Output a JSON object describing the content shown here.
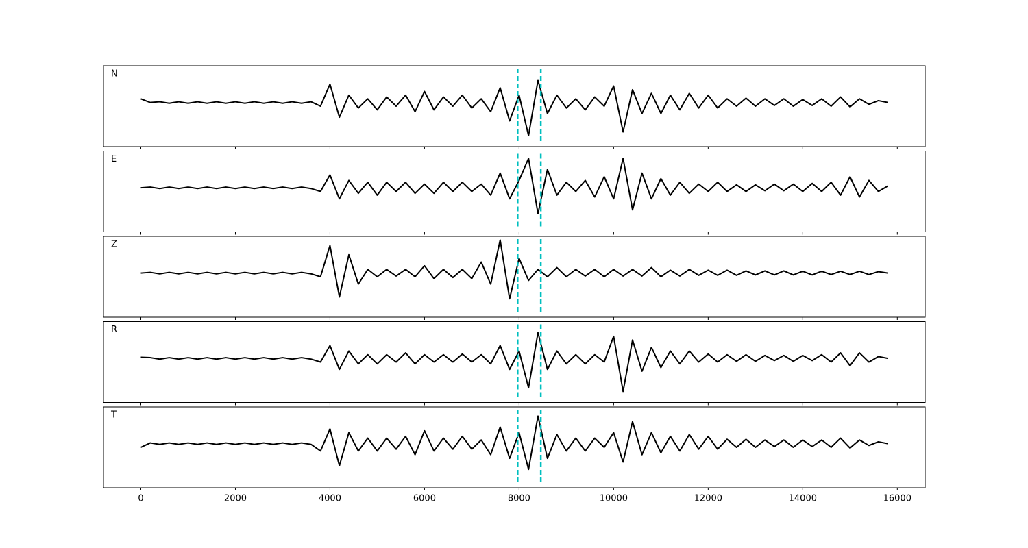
{
  "chart_data": {
    "type": "line",
    "x": [
      0,
      200,
      400,
      600,
      800,
      1000,
      1200,
      1400,
      1600,
      1800,
      2000,
      2200,
      2400,
      2600,
      2800,
      3000,
      3200,
      3400,
      3600,
      3800,
      4000,
      4200,
      4400,
      4600,
      4800,
      5000,
      5200,
      5400,
      5600,
      5800,
      6000,
      6200,
      6400,
      6600,
      6800,
      7000,
      7200,
      7400,
      7600,
      7800,
      8000,
      8200,
      8400,
      8600,
      8800,
      9000,
      9200,
      9400,
      9600,
      9800,
      10000,
      10200,
      10400,
      10600,
      10800,
      11000,
      11200,
      11400,
      11600,
      11800,
      12000,
      12200,
      12400,
      12600,
      12800,
      13000,
      13200,
      13400,
      13600,
      13800,
      14000,
      14200,
      14400,
      14600,
      14800,
      15000,
      15200,
      15400,
      15600,
      15800
    ],
    "series": [
      {
        "name": "N",
        "color": "#000000",
        "values": [
          0.1,
          0,
          0.02,
          -0.02,
          0.02,
          -0.02,
          0.02,
          -0.02,
          0.02,
          -0.02,
          0.02,
          -0.02,
          0.02,
          -0.02,
          0.02,
          -0.02,
          0.02,
          -0.02,
          0.02,
          -0.1,
          0.5,
          -0.4,
          0.2,
          -0.15,
          0.1,
          -0.2,
          0.15,
          -0.1,
          0.2,
          -0.25,
          0.3,
          -0.2,
          0.15,
          -0.1,
          0.2,
          -0.15,
          0.1,
          -0.25,
          0.4,
          -0.5,
          0.2,
          -0.9,
          0.6,
          -0.3,
          0.2,
          -0.15,
          0.1,
          -0.2,
          0.15,
          -0.1,
          0.45,
          -0.8,
          0.35,
          -0.3,
          0.25,
          -0.3,
          0.2,
          -0.2,
          0.25,
          -0.15,
          0.2,
          -0.15,
          0.1,
          -0.1,
          0.12,
          -0.1,
          0.1,
          -0.08,
          0.1,
          -0.1,
          0.08,
          -0.08,
          0.1,
          -0.1,
          0.15,
          -0.12,
          0.1,
          -0.05,
          0.05,
          0
        ]
      },
      {
        "name": "E",
        "color": "#000000",
        "values": [
          0,
          0.02,
          -0.02,
          0.02,
          -0.02,
          0.02,
          -0.02,
          0.02,
          -0.02,
          0.02,
          -0.02,
          0.02,
          -0.02,
          0.02,
          -0.02,
          0.02,
          -0.02,
          0.02,
          -0.02,
          -0.1,
          0.35,
          -0.3,
          0.2,
          -0.15,
          0.15,
          -0.2,
          0.15,
          -0.1,
          0.15,
          -0.15,
          0.1,
          -0.15,
          0.15,
          -0.1,
          0.15,
          -0.1,
          0.1,
          -0.2,
          0.4,
          -0.3,
          0.2,
          0.8,
          -0.7,
          0.5,
          -0.2,
          0.15,
          -0.1,
          0.2,
          -0.25,
          0.3,
          -0.3,
          0.8,
          -0.6,
          0.4,
          -0.3,
          0.25,
          -0.2,
          0.15,
          -0.15,
          0.1,
          -0.1,
          0.15,
          -0.1,
          0.08,
          -0.1,
          0.08,
          -0.08,
          0.1,
          -0.08,
          0.1,
          -0.1,
          0.12,
          -0.1,
          0.15,
          -0.2,
          0.3,
          -0.25,
          0.2,
          -0.1,
          0.05
        ]
      },
      {
        "name": "Z",
        "color": "#000000",
        "values": [
          0,
          0.02,
          -0.02,
          0.02,
          -0.02,
          0.02,
          -0.02,
          0.02,
          -0.02,
          0.02,
          -0.02,
          0.02,
          -0.02,
          0.02,
          -0.02,
          0.02,
          -0.02,
          0.02,
          -0.02,
          -0.1,
          0.75,
          -0.65,
          0.5,
          -0.3,
          0.1,
          -0.1,
          0.1,
          -0.08,
          0.1,
          -0.1,
          0.2,
          -0.15,
          0.1,
          -0.12,
          0.1,
          -0.15,
          0.3,
          -0.3,
          0.9,
          -0.7,
          0.4,
          -0.2,
          0.1,
          -0.1,
          0.15,
          -0.1,
          0.1,
          -0.08,
          0.1,
          -0.1,
          0.1,
          -0.08,
          0.1,
          -0.08,
          0.15,
          -0.1,
          0.08,
          -0.08,
          0.1,
          -0.06,
          0.08,
          -0.06,
          0.08,
          -0.06,
          0.06,
          -0.05,
          0.06,
          -0.05,
          0.06,
          -0.05,
          0.05,
          -0.05,
          0.05,
          -0.04,
          0.05,
          -0.04,
          0.05,
          -0.04,
          0.04,
          0
        ]
      },
      {
        "name": "R",
        "color": "#000000",
        "values": [
          0.03,
          0.02,
          -0.02,
          0.02,
          -0.02,
          0.02,
          -0.02,
          0.02,
          -0.02,
          0.02,
          -0.02,
          0.02,
          -0.02,
          0.02,
          -0.02,
          0.02,
          -0.02,
          0.02,
          -0.02,
          -0.1,
          0.35,
          -0.3,
          0.2,
          -0.15,
          0.1,
          -0.15,
          0.1,
          -0.1,
          0.15,
          -0.15,
          0.1,
          -0.1,
          0.1,
          -0.1,
          0.12,
          -0.1,
          0.1,
          -0.15,
          0.35,
          -0.3,
          0.2,
          -0.8,
          0.7,
          -0.3,
          0.2,
          -0.15,
          0.1,
          -0.15,
          0.1,
          -0.1,
          0.6,
          -0.9,
          0.5,
          -0.35,
          0.3,
          -0.25,
          0.2,
          -0.15,
          0.2,
          -0.1,
          0.12,
          -0.1,
          0.1,
          -0.08,
          0.1,
          -0.08,
          0.08,
          -0.06,
          0.08,
          -0.08,
          0.08,
          -0.06,
          0.1,
          -0.1,
          0.15,
          -0.2,
          0.15,
          -0.1,
          0.05,
          0
        ]
      },
      {
        "name": "T",
        "color": "#000000",
        "values": [
          -0.1,
          0.02,
          -0.02,
          0.02,
          -0.02,
          0.02,
          -0.02,
          0.02,
          -0.02,
          0.02,
          -0.02,
          0.02,
          -0.02,
          0.02,
          -0.02,
          0.02,
          -0.02,
          0.02,
          -0.02,
          -0.2,
          0.4,
          -0.6,
          0.3,
          -0.2,
          0.15,
          -0.2,
          0.15,
          -0.15,
          0.2,
          -0.3,
          0.35,
          -0.2,
          0.15,
          -0.15,
          0.2,
          -0.15,
          0.1,
          -0.3,
          0.45,
          -0.4,
          0.3,
          -0.7,
          0.75,
          -0.4,
          0.25,
          -0.2,
          0.15,
          -0.2,
          0.15,
          -0.1,
          0.3,
          -0.5,
          0.6,
          -0.3,
          0.3,
          -0.25,
          0.2,
          -0.2,
          0.25,
          -0.15,
          0.2,
          -0.15,
          0.12,
          -0.1,
          0.12,
          -0.1,
          0.1,
          -0.08,
          0.1,
          -0.1,
          0.1,
          -0.08,
          0.1,
          -0.1,
          0.15,
          -0.12,
          0.1,
          -0.05,
          0.05,
          0
        ]
      }
    ],
    "xlim": [
      -790,
      16590
    ],
    "xticks": [
      0,
      2000,
      4000,
      6000,
      8000,
      10000,
      12000,
      14000,
      16000
    ],
    "ylim": [
      -1.2,
      1.0
    ],
    "vlines": [
      7970,
      8460
    ],
    "vline_color": "#00bfbf"
  }
}
